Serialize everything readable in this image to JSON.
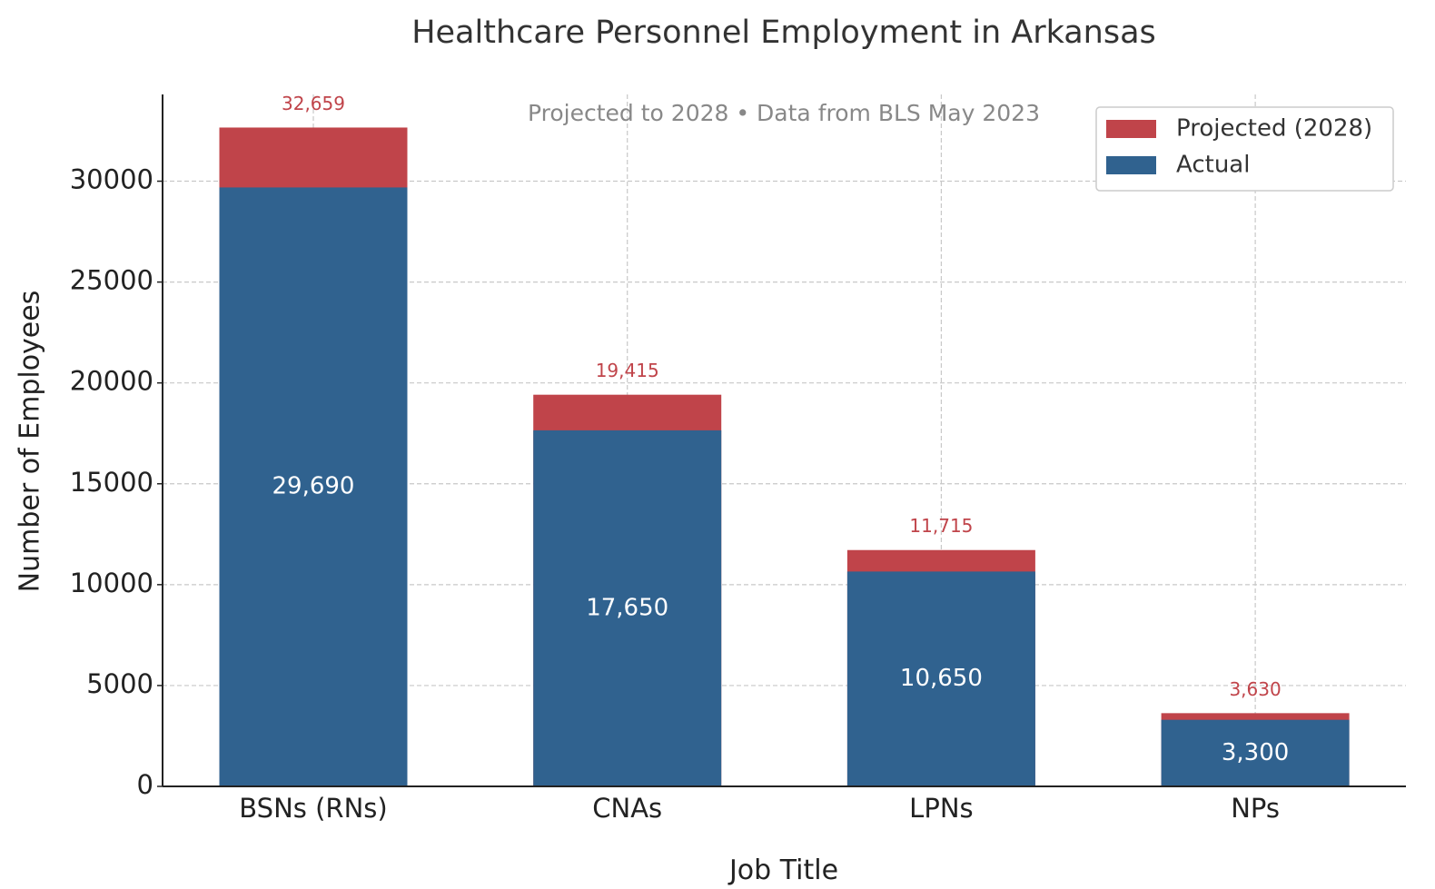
{
  "chart_data": {
    "type": "bar",
    "title": "Healthcare Personnel Employment in Arkansas",
    "annotation": "Projected to 2028 • Data from BLS May 2023",
    "x_label": "Job Title",
    "y_label": "Number of Employees",
    "categories": [
      "BSNs (RNs)",
      "CNAs",
      "LPNs",
      "NPs"
    ],
    "series": [
      {
        "name": "Projected (2028)",
        "color": "#c0444a",
        "values": [
          32659,
          19415,
          11715,
          3630
        ],
        "value_labels": [
          "32,659",
          "19,415",
          "11,715",
          "3,630"
        ]
      },
      {
        "name": "Actual",
        "color": "#30628f",
        "values": [
          29690,
          17650,
          10650,
          3300
        ],
        "value_labels": [
          "29,690",
          "17,650",
          "10,650",
          "3,300"
        ]
      }
    ],
    "ylim": [
      0,
      34300
    ],
    "yticks": [
      0,
      5000,
      10000,
      15000,
      20000,
      25000,
      30000
    ],
    "grid": true,
    "legend": "upper right"
  }
}
